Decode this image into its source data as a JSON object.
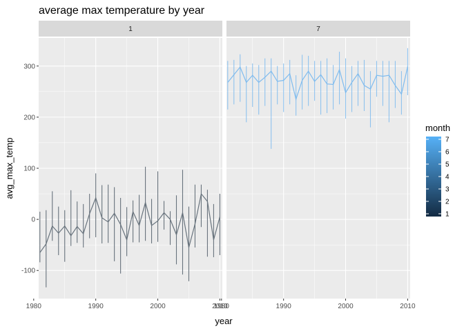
{
  "chart_data": {
    "type": "line",
    "title": "average max temperature by year",
    "xlabel": "year",
    "ylabel": "avg_max_temp",
    "xlim": [
      1980.8,
      2010.4
    ],
    "ylim": [
      -155,
      355
    ],
    "x_ticks": [
      1980,
      1990,
      2000,
      2010
    ],
    "y_ticks": [
      -100,
      0,
      100,
      200,
      300
    ],
    "grid": true,
    "legend": {
      "title": "month",
      "placement": "right",
      "labels": [
        "7",
        "6",
        "5",
        "4",
        "3",
        "2",
        "1"
      ],
      "gradient": [
        "#56B1F7",
        "#132B43"
      ]
    },
    "panels": [
      {
        "strip": "1",
        "color": "#67727C",
        "years": [
          1981,
          1982,
          1983,
          1984,
          1985,
          1986,
          1987,
          1988,
          1989,
          1990,
          1991,
          1992,
          1993,
          1994,
          1995,
          1996,
          1997,
          1998,
          1999,
          2000,
          2001,
          2002,
          2003,
          2004,
          2005,
          2006,
          2007,
          2008,
          2009,
          2010
        ],
        "mean": [
          -65,
          -48,
          -13,
          -27,
          -13,
          -32,
          -14,
          -28,
          11,
          42,
          3,
          -5,
          12,
          -10,
          -40,
          15,
          -12,
          33,
          -12,
          -3,
          13,
          0,
          -30,
          13,
          -55,
          -9,
          50,
          35,
          -40,
          5
        ],
        "min": [
          -84,
          -133,
          -42,
          -70,
          -83,
          -52,
          -46,
          -55,
          -37,
          -35,
          -47,
          -46,
          -82,
          -106,
          -72,
          -45,
          -45,
          -42,
          -47,
          -44,
          -20,
          -50,
          -88,
          -108,
          -121,
          -55,
          -15,
          -73,
          -74,
          -70
        ],
        "max": [
          15,
          18,
          55,
          25,
          18,
          57,
          35,
          30,
          50,
          90,
          67,
          68,
          63,
          42,
          24,
          37,
          48,
          103,
          40,
          94,
          36,
          16,
          47,
          97,
          25,
          68,
          68,
          58,
          30,
          50
        ]
      },
      {
        "strip": "7",
        "color": "#7EBBEE",
        "years": [
          1981,
          1982,
          1983,
          1984,
          1985,
          1986,
          1987,
          1988,
          1989,
          1990,
          1991,
          1992,
          1993,
          1994,
          1995,
          1996,
          1997,
          1998,
          1999,
          2000,
          2001,
          2002,
          2003,
          2004,
          2005,
          2006,
          2007,
          2008,
          2009,
          2010
        ],
        "mean": [
          268,
          283,
          298,
          268,
          282,
          268,
          278,
          290,
          270,
          272,
          285,
          235,
          272,
          290,
          270,
          283,
          265,
          264,
          293,
          248,
          268,
          285,
          262,
          255,
          282,
          280,
          282,
          262,
          245,
          299
        ],
        "min": [
          215,
          225,
          230,
          190,
          220,
          205,
          222,
          138,
          225,
          210,
          225,
          203,
          215,
          222,
          232,
          205,
          208,
          215,
          225,
          197,
          210,
          222,
          212,
          180,
          240,
          222,
          190,
          218,
          205,
          243
        ],
        "max": [
          310,
          312,
          323,
          300,
          305,
          302,
          315,
          315,
          300,
          305,
          312,
          282,
          322,
          320,
          310,
          310,
          315,
          302,
          328,
          315,
          300,
          310,
          312,
          290,
          310,
          310,
          310,
          310,
          290,
          335
        ]
      }
    ]
  }
}
